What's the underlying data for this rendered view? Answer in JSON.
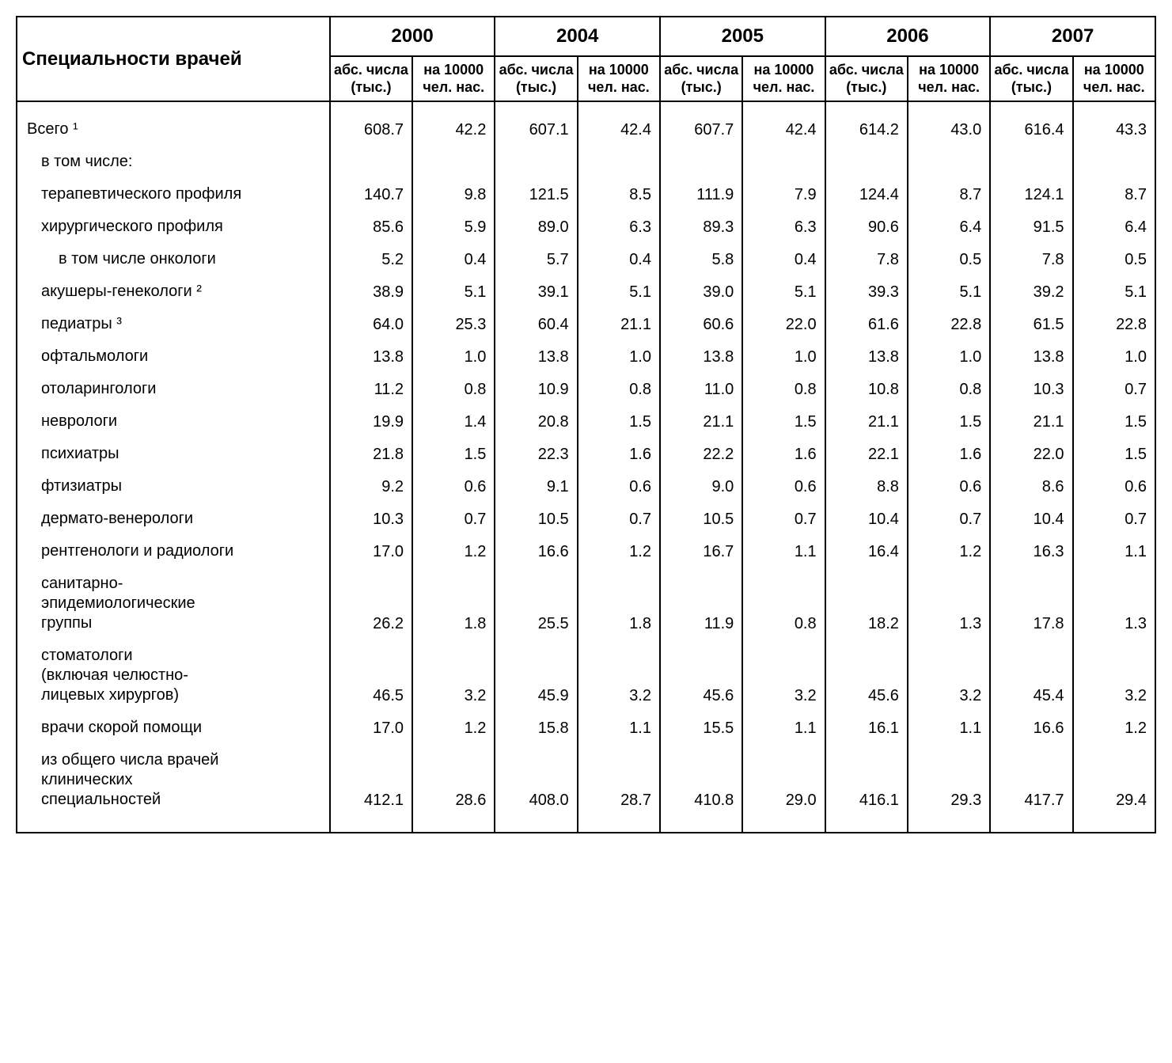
{
  "header": {
    "row_label": "Специальности врачей",
    "years": [
      "2000",
      "2004",
      "2005",
      "2006",
      "2007"
    ],
    "sub_abs": "абс. числа (тыс.)",
    "sub_per": "на 10000 чел. нас."
  },
  "rows": [
    {
      "label": "Всего ¹",
      "indent": 0,
      "vals": [
        "608.7",
        "42.2",
        "607.1",
        "42.4",
        "607.7",
        "42.4",
        "614.2",
        "43.0",
        "616.4",
        "43.3"
      ]
    },
    {
      "label": "в том числе:",
      "indent": 1,
      "vals": [
        "",
        "",
        "",
        "",
        "",
        "",
        "",
        "",
        "",
        ""
      ]
    },
    {
      "label": "терапевтического профиля",
      "indent": 1,
      "vals": [
        "140.7",
        "9.8",
        "121.5",
        "8.5",
        "111.9",
        "7.9",
        "124.4",
        "8.7",
        "124.1",
        "8.7"
      ]
    },
    {
      "label": "хирургического профиля",
      "indent": 1,
      "vals": [
        "85.6",
        "5.9",
        "89.0",
        "6.3",
        "89.3",
        "6.3",
        "90.6",
        "6.4",
        "91.5",
        "6.4"
      ]
    },
    {
      "label": "в том числе онкологи",
      "indent": 2,
      "vals": [
        "5.2",
        "0.4",
        "5.7",
        "0.4",
        "5.8",
        "0.4",
        "7.8",
        "0.5",
        "7.8",
        "0.5"
      ]
    },
    {
      "label": "акушеры-генекологи ²",
      "indent": 1,
      "vals": [
        "38.9",
        "5.1",
        "39.1",
        "5.1",
        "39.0",
        "5.1",
        "39.3",
        "5.1",
        "39.2",
        "5.1"
      ]
    },
    {
      "label": "педиатры  ³",
      "indent": 1,
      "vals": [
        "64.0",
        "25.3",
        "60.4",
        "21.1",
        "60.6",
        "22.0",
        "61.6",
        "22.8",
        "61.5",
        "22.8"
      ]
    },
    {
      "label": "офтальмологи",
      "indent": 1,
      "vals": [
        "13.8",
        "1.0",
        "13.8",
        "1.0",
        "13.8",
        "1.0",
        "13.8",
        "1.0",
        "13.8",
        "1.0"
      ]
    },
    {
      "label": "отоларингологи",
      "indent": 1,
      "vals": [
        "11.2",
        "0.8",
        "10.9",
        "0.8",
        "11.0",
        "0.8",
        "10.8",
        "0.8",
        "10.3",
        "0.7"
      ]
    },
    {
      "label": "неврологи",
      "indent": 1,
      "vals": [
        "19.9",
        "1.4",
        "20.8",
        "1.5",
        "21.1",
        "1.5",
        "21.1",
        "1.5",
        "21.1",
        "1.5"
      ]
    },
    {
      "label": "психиатры",
      "indent": 1,
      "vals": [
        "21.8",
        "1.5",
        "22.3",
        "1.6",
        "22.2",
        "1.6",
        "22.1",
        "1.6",
        "22.0",
        "1.5"
      ]
    },
    {
      "label": "фтизиатры",
      "indent": 1,
      "vals": [
        "9.2",
        "0.6",
        "9.1",
        "0.6",
        "9.0",
        "0.6",
        "8.8",
        "0.6",
        "8.6",
        "0.6"
      ]
    },
    {
      "label": "дермато-венерологи",
      "indent": 1,
      "vals": [
        "10.3",
        "0.7",
        "10.5",
        "0.7",
        "10.5",
        "0.7",
        "10.4",
        "0.7",
        "10.4",
        "0.7"
      ]
    },
    {
      "label": "рентгенологи и радиологи",
      "indent": 1,
      "vals": [
        "17.0",
        "1.2",
        "16.6",
        "1.2",
        "16.7",
        "1.1",
        "16.4",
        "1.2",
        "16.3",
        "1.1"
      ]
    },
    {
      "label": "санитарно-\nэпидемиологические\nгруппы",
      "indent": 1,
      "vals": [
        "26.2",
        "1.8",
        "25.5",
        "1.8",
        "11.9",
        "0.8",
        "18.2",
        "1.3",
        "17.8",
        "1.3"
      ]
    },
    {
      "label": "стоматологи\n(включая челюстно-\nлицевых хирургов)",
      "indent": 1,
      "vals": [
        "46.5",
        "3.2",
        "45.9",
        "3.2",
        "45.6",
        "3.2",
        "45.6",
        "3.2",
        "45.4",
        "3.2"
      ]
    },
    {
      "label": "врачи скорой помощи",
      "indent": 1,
      "vals": [
        "17.0",
        "1.2",
        "15.8",
        "1.1",
        "15.5",
        "1.1",
        "16.1",
        "1.1",
        "16.6",
        "1.2"
      ]
    },
    {
      "label": "из общего числа врачей\nклинических\nспециальностей",
      "indent": 1,
      "vals": [
        "412.1",
        "28.6",
        "408.0",
        "28.7",
        "410.8",
        "29.0",
        "416.1",
        "29.3",
        "417.7",
        "29.4"
      ]
    }
  ],
  "style": {
    "type": "table",
    "num_year_groups": 5,
    "cols_per_year": 2,
    "background_color": "#ffffff",
    "border_color": "#000000",
    "text_color": "#000000",
    "font_family": "Arial",
    "header_year_fontsize_pt": 18,
    "header_sub_fontsize_pt": 13,
    "rowlabel_fontsize_pt": 18,
    "body_fontsize_pt": 15,
    "label_col_width_pct": 27.5,
    "num_col_width_pct": 7.25,
    "number_align": "right",
    "label_align": "left",
    "header_weight": "bold"
  }
}
